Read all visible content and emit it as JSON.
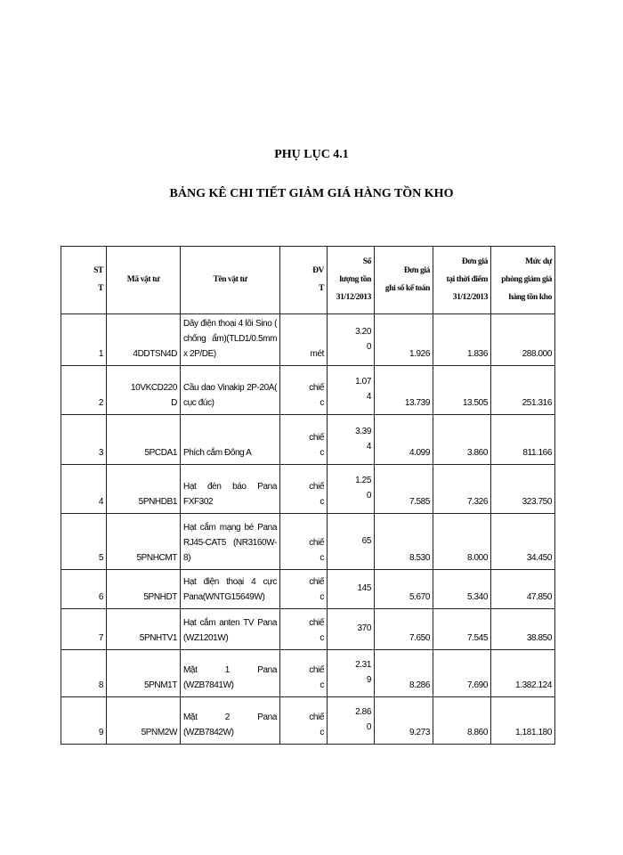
{
  "title": "PHỤ LỤC 4.1",
  "subtitle": "BẢNG KÊ CHI TIẾT GIẢM GIÁ HÀNG TỒN KHO",
  "headers": [
    "ST\nT",
    "Mã vật tư",
    "Tên vật tư",
    "ĐV\nT",
    "Số\nlượng tồn\n31/12/2013",
    "Đơn giá\nghi sổ kế toán",
    "Đơn giá\ntại thời điểm\n31/12/2013",
    "Mức dự\nphòng giảm giá\nhàng tồn kho"
  ],
  "rows": [
    {
      "stt": "1",
      "ma": "4DDTSN4D",
      "ten": "Dây điện thoại 4 lõi Sino ( chống ẩm)(TLD1/0.5mm x 2P/DE)",
      "dvt": "mét",
      "sl": "3.20\n0",
      "dg_so": "1.926",
      "dg_tt": "1.836",
      "muc": "288.000"
    },
    {
      "stt": "2",
      "ma": "10VKCD220\nD",
      "ten": "Cầu dao Vinakip 2P-20A( cục đúc)",
      "dvt": "chiế\nc",
      "sl": "1.07\n4",
      "dg_so": "13.739",
      "dg_tt": "13.505",
      "muc": "251.316"
    },
    {
      "stt": "3",
      "ma": "5PCDA1",
      "ten": "Phích cắm Đông A",
      "dvt": "chiế\nc",
      "sl": "3.39\n4",
      "dg_so": "4.099",
      "dg_tt": "3.860",
      "muc": "811.166"
    },
    {
      "stt": "4",
      "ma": "5PNHDB1",
      "ten": "Hạt đèn báo Pana FXF302",
      "dvt": "chiế\nc",
      "sl": "1.25\n0",
      "dg_so": "7.585",
      "dg_tt": "7.326",
      "muc": "323.750"
    },
    {
      "stt": "5",
      "ma": "5PNHCMT",
      "ten": "Hạt cắm mạng bé Pana RJ45-CAT5 (NR3160W-8)",
      "dvt": "chiế\nc",
      "sl": "65",
      "dg_so": "8.530",
      "dg_tt": "8.000",
      "muc": "34.450"
    },
    {
      "stt": "6",
      "ma": "5PNHDT",
      "ten": "Hạt điện thoại 4 cực Pana(WNTG15649W)",
      "dvt": "chiế\nc",
      "sl": "145",
      "dg_so": "5.670",
      "dg_tt": "5.340",
      "muc": "47.850"
    },
    {
      "stt": "7",
      "ma": "5PNHTV1",
      "ten": "Hạt cắm anten TV Pana (WZ1201W)",
      "dvt": "chiế\nc",
      "sl": "370",
      "dg_so": "7.650",
      "dg_tt": "7.545",
      "muc": "38.850"
    },
    {
      "stt": "8",
      "ma": "5PNM1T",
      "ten": "Mặt 1 Pana (WZB7841W)",
      "dvt": "chiế\nc",
      "sl": "2.31\n9",
      "dg_so": "8.286",
      "dg_tt": "7.690",
      "muc": "1.382.124"
    },
    {
      "stt": "9",
      "ma": "5PNM2W",
      "ten": "Mặt 2 Pana (WZB7842W)",
      "dvt": "chiế\nc",
      "sl": "2.86\n0",
      "dg_so": "9.273",
      "dg_tt": "8.860",
      "muc": "1.181.180"
    }
  ]
}
